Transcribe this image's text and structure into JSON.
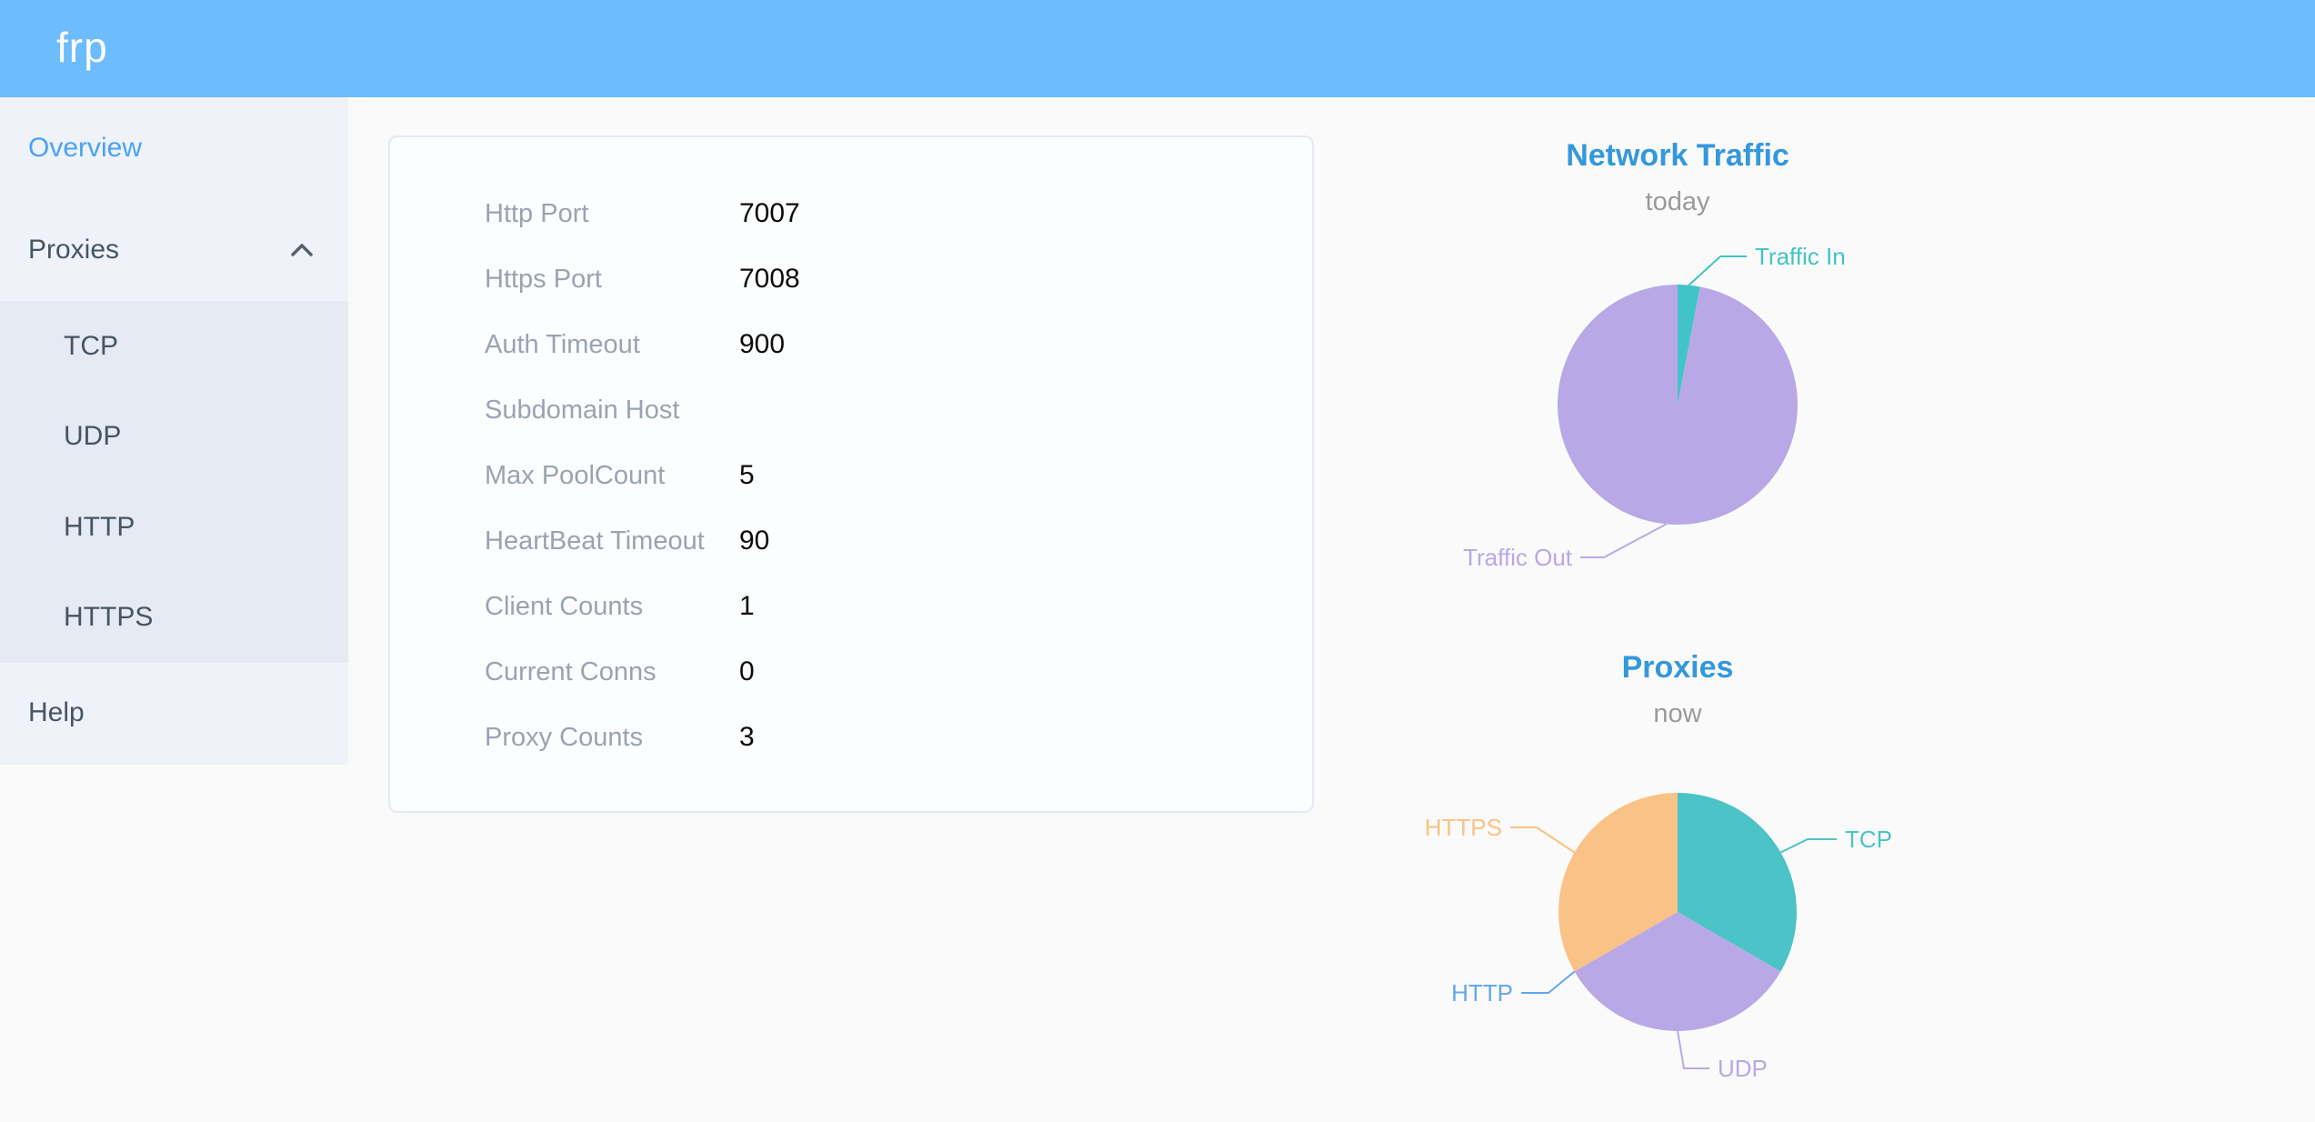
{
  "header": {
    "logo": "frp"
  },
  "sidebar": {
    "overview": "Overview",
    "proxies": "Proxies",
    "submenu": [
      "TCP",
      "UDP",
      "HTTP",
      "HTTPS"
    ],
    "help": "Help"
  },
  "card": {
    "rows": [
      {
        "label": "Http Port",
        "value": "7007"
      },
      {
        "label": "Https Port",
        "value": "7008"
      },
      {
        "label": "Auth Timeout",
        "value": "900"
      },
      {
        "label": "Subdomain Host",
        "value": ""
      },
      {
        "label": "Max PoolCount",
        "value": "5"
      },
      {
        "label": "HeartBeat Timeout",
        "value": "90"
      },
      {
        "label": "Client Counts",
        "value": "1"
      },
      {
        "label": "Current Conns",
        "value": "0"
      },
      {
        "label": "Proxy Counts",
        "value": "3"
      }
    ]
  },
  "chart_data": [
    {
      "type": "pie",
      "title": "Network Traffic",
      "subtitle": "today",
      "unit": "percent_of_total (estimated from slice angles)",
      "legend": "none, outside labels with connector lines",
      "slices": [
        {
          "name": "Traffic In",
          "value": 3,
          "color": "#41c4c7"
        },
        {
          "name": "Traffic Out",
          "value": 97,
          "color": "#b9a8e6"
        }
      ]
    },
    {
      "type": "pie",
      "title": "Proxies",
      "subtitle": "now",
      "unit": "proxy_count",
      "legend": "none, outside labels with connector lines",
      "slices": [
        {
          "name": "TCP",
          "value": 1,
          "color": "#4cc3c6"
        },
        {
          "name": "UDP",
          "value": 1,
          "color": "#b9a8e6"
        },
        {
          "name": "HTTP",
          "value": 0,
          "color": "#61a8ee"
        },
        {
          "name": "HTTPS",
          "value": 1,
          "color": "#f9c286"
        }
      ]
    }
  ],
  "colors": {
    "header_bg": "#6cbcfe",
    "sidebar_bg": "#eff2f8",
    "submenu_bg": "#e6eaf3",
    "sidebar_text": "#475563",
    "active_item": "#4aa2f7",
    "main_bg": "#fafafa",
    "card_border": "#e4e9f6",
    "card_label": "#9aa3b2",
    "card_value": "#0c0c0c",
    "chart_title": "#3398dc",
    "chart_subtitle": "#9a9a9a"
  }
}
